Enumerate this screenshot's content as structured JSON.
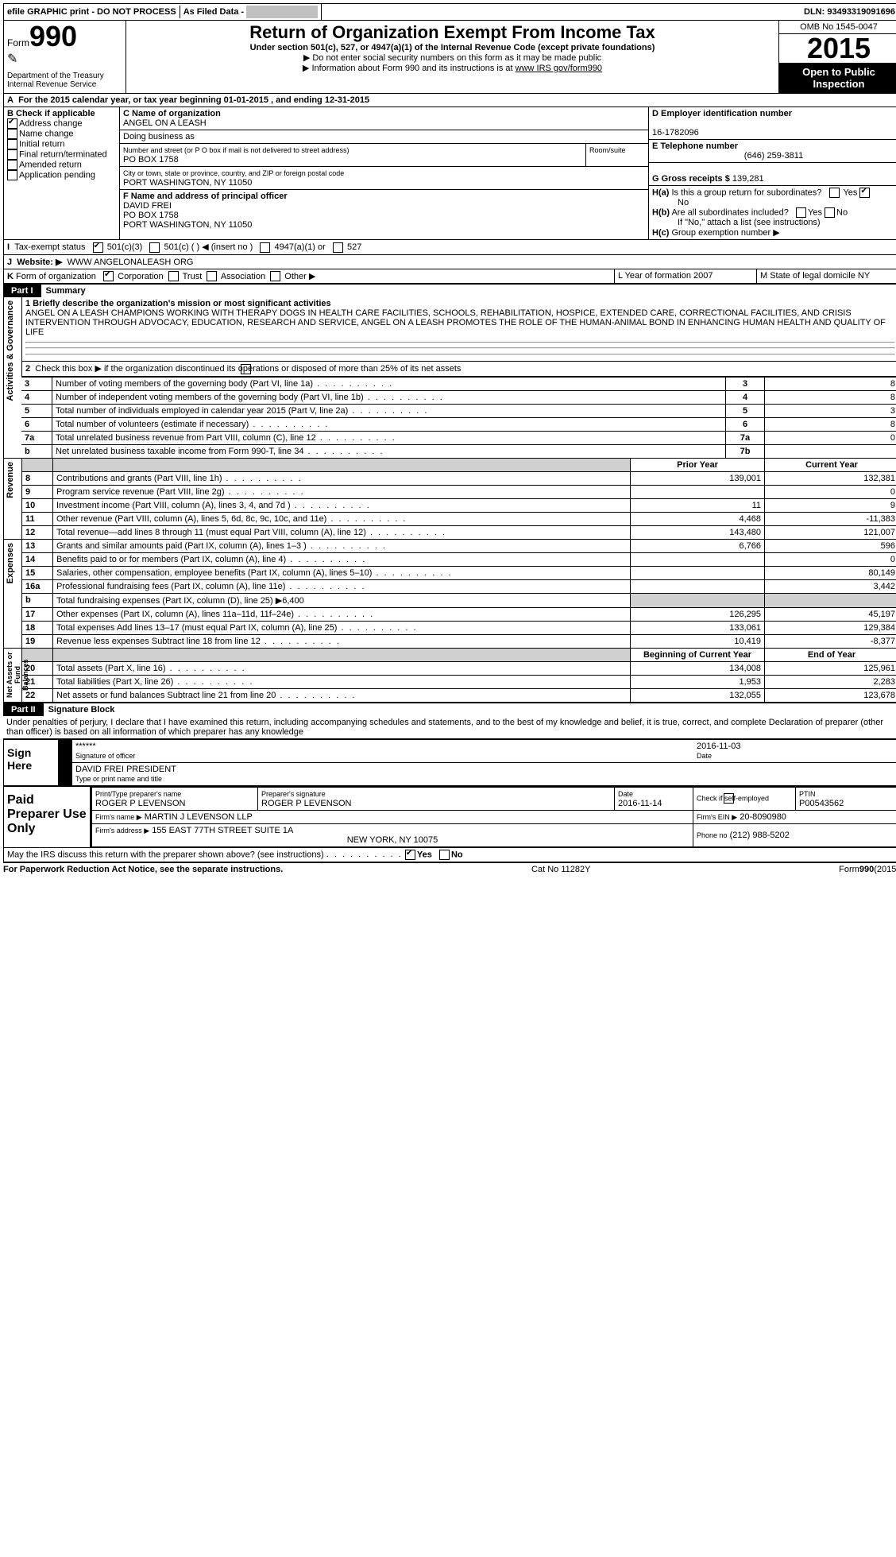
{
  "top": {
    "efile": "efile GRAPHIC print - DO NOT PROCESS",
    "asfiled": "As Filed Data -",
    "dln_label": "DLN:",
    "dln": "93493319091696"
  },
  "header": {
    "form_label": "Form",
    "form_no": "990",
    "dept": "Department of the Treasury\nInternal Revenue Service",
    "title": "Return of Organization Exempt From Income Tax",
    "sub1": "Under section 501(c), 527, or 4947(a)(1) of the Internal Revenue Code (except private foundations)",
    "sub2": "▶ Do not enter social security numbers on this form as it may be made public",
    "sub3": "▶ Information about Form 990 and its instructions is at ",
    "sub3_link": "www IRS gov/form990",
    "omb": "OMB No 1545-0047",
    "year": "2015",
    "open": "Open to Public Inspection"
  },
  "A": {
    "text": "For the 2015 calendar year, or tax year beginning 01-01-2015    , and ending 12-31-2015"
  },
  "B": {
    "label": "Check if applicable",
    "items": [
      "Address change",
      "Name change",
      "Initial return",
      "Final return/terminated",
      "Amended return",
      "Application pending"
    ],
    "checked": [
      true,
      false,
      false,
      false,
      false,
      false
    ]
  },
  "C": {
    "name_label": "C Name of organization",
    "name": "ANGEL ON A LEASH",
    "dba_label": "Doing business as",
    "addr_label": "Number and street (or P O  box if mail is not delivered to street address)",
    "room_label": "Room/suite",
    "addr": "PO BOX 1758",
    "city_label": "City or town, state or province, country, and ZIP or foreign postal code",
    "city": "PORT WASHINGTON, NY  11050"
  },
  "D": {
    "label": "D Employer identification number",
    "val": "16-1782096"
  },
  "E": {
    "label": "E Telephone number",
    "val": "(646) 259-3811"
  },
  "F": {
    "label": "F  Name and address of principal officer",
    "name": "DAVID FREI",
    "addr1": "PO BOX 1758",
    "addr2": "PORT WASHINGTON, NY  11050"
  },
  "G": {
    "label": "G Gross receipts $",
    "val": "139,281"
  },
  "H": {
    "a": "Is this a group return for subordinates?",
    "a_yes": "Yes",
    "a_no": "No",
    "b": "Are all subordinates included?",
    "b_note": "If \"No,\" attach a list  (see instructions)",
    "c": "Group exemption number ▶"
  },
  "I": {
    "label": "Tax-exempt status",
    "opts": [
      "501(c)(3)",
      "501(c) (  ) ◀ (insert no )",
      "4947(a)(1) or",
      "527"
    ]
  },
  "J": {
    "label": "Website: ▶",
    "val": "WWW ANGELONALEASH ORG"
  },
  "K": {
    "label": "Form of organization",
    "opts": [
      "Corporation",
      "Trust",
      "Association",
      "Other ▶"
    ]
  },
  "L": {
    "label": "L Year of formation  2007"
  },
  "M": {
    "label": "M State of legal domicile  NY"
  },
  "part1": {
    "tag": "Part I",
    "title": "Summary",
    "l1_label": "1 Briefly describe the organization's mission or most significant activities",
    "l1": "ANGEL ON A LEASH CHAMPIONS WORKING WITH THERAPY DOGS IN HEALTH CARE FACILITIES, SCHOOLS, REHABILITATION, HOSPICE, EXTENDED CARE, CORRECTIONAL FACILITIES, AND CRISIS INTERVENTION THROUGH ADVOCACY, EDUCATION, RESEARCH AND SERVICE, ANGEL ON A LEASH PROMOTES THE ROLE OF THE HUMAN-ANIMAL BOND IN ENHANCING HUMAN HEALTH AND QUALITY OF LIFE",
    "l2": "Check this box ▶      if the organization discontinued its operations or disposed of more than 25% of its net assets",
    "rows_a": [
      {
        "n": "3",
        "t": "Number of voting members of the governing body (Part VI, line 1a)",
        "k": "3",
        "v": "8"
      },
      {
        "n": "4",
        "t": "Number of independent voting members of the governing body (Part VI, line 1b)",
        "k": "4",
        "v": "8"
      },
      {
        "n": "5",
        "t": "Total number of individuals employed in calendar year 2015 (Part V, line 2a)",
        "k": "5",
        "v": "3"
      },
      {
        "n": "6",
        "t": "Total number of volunteers (estimate if necessary)",
        "k": "6",
        "v": "8"
      },
      {
        "n": "7a",
        "t": "Total unrelated business revenue from Part VIII, column (C), line 12",
        "k": "7a",
        "v": "0"
      },
      {
        "n": "b",
        "t": "Net unrelated business taxable income from Form 990-T, line 34",
        "k": "7b",
        "v": ""
      }
    ],
    "hdr_prior": "Prior Year",
    "hdr_curr": "Current Year",
    "rev": [
      {
        "n": "8",
        "t": "Contributions and grants (Part VIII, line 1h)",
        "p": "139,001",
        "c": "132,381"
      },
      {
        "n": "9",
        "t": "Program service revenue (Part VIII, line 2g)",
        "p": "",
        "c": "0"
      },
      {
        "n": "10",
        "t": "Investment income (Part VIII, column (A), lines 3, 4, and 7d )",
        "p": "11",
        "c": "9"
      },
      {
        "n": "11",
        "t": "Other revenue (Part VIII, column (A), lines 5, 6d, 8c, 9c, 10c, and 11e)",
        "p": "4,468",
        "c": "-11,383"
      },
      {
        "n": "12",
        "t": "Total revenue—add lines 8 through 11 (must equal Part VIII, column (A), line 12)",
        "p": "143,480",
        "c": "121,007"
      }
    ],
    "exp": [
      {
        "n": "13",
        "t": "Grants and similar amounts paid (Part IX, column (A), lines 1–3 )",
        "p": "6,766",
        "c": "596"
      },
      {
        "n": "14",
        "t": "Benefits paid to or for members (Part IX, column (A), line 4)",
        "p": "",
        "c": "0"
      },
      {
        "n": "15",
        "t": "Salaries, other compensation, employee benefits (Part IX, column (A), lines 5–10)",
        "p": "",
        "c": "80,149"
      },
      {
        "n": "16a",
        "t": "Professional fundraising fees (Part IX, column (A), line 11e)",
        "p": "",
        "c": "3,442"
      },
      {
        "n": "b",
        "t": "Total fundraising expenses (Part IX, column (D), line 25) ▶6,400",
        "p": null,
        "c": null
      },
      {
        "n": "17",
        "t": "Other expenses (Part IX, column (A), lines 11a–11d, 11f–24e)",
        "p": "126,295",
        "c": "45,197"
      },
      {
        "n": "18",
        "t": "Total expenses  Add lines 13–17 (must equal Part IX, column (A), line 25)",
        "p": "133,061",
        "c": "129,384"
      },
      {
        "n": "19",
        "t": "Revenue less expenses  Subtract line 18 from line 12",
        "p": "10,419",
        "c": "-8,377"
      }
    ],
    "hdr_beg": "Beginning of Current Year",
    "hdr_end": "End of Year",
    "net": [
      {
        "n": "20",
        "t": "Total assets (Part X, line 16)",
        "p": "134,008",
        "c": "125,961"
      },
      {
        "n": "21",
        "t": "Total liabilities (Part X, line 26)",
        "p": "1,953",
        "c": "2,283"
      },
      {
        "n": "22",
        "t": "Net assets or fund balances  Subtract line 21 from line 20",
        "p": "132,055",
        "c": "123,678"
      }
    ],
    "side_ag": "Activities & Governance",
    "side_rev": "Revenue",
    "side_exp": "Expenses",
    "side_net": "Net Assets or Fund Balances"
  },
  "part2": {
    "tag": "Part II",
    "title": "Signature Block",
    "decl": "Under penalties of perjury, I declare that I have examined this return, including accompanying schedules and statements, and to the best of my knowledge and belief, it is true, correct, and complete  Declaration of preparer (other than officer) is based on all information of which preparer has any knowledge",
    "sign": "Sign Here",
    "sig_stars": "******",
    "sig_of": "Signature of officer",
    "sig_date": "2016-11-03",
    "date_lbl": "Date",
    "name_title": "DAVID FREI PRESIDENT",
    "name_lbl": "Type or print name and title",
    "paid": "Paid Preparer Use Only",
    "prep_name_lbl": "Print/Type preparer's name",
    "prep_name": "ROGER P LEVENSON",
    "prep_sig_lbl": "Preparer's signature",
    "prep_sig": "ROGER P LEVENSON",
    "prep_date_lbl": "Date",
    "prep_date": "2016-11-14",
    "check_lbl": "Check       if self-employed",
    "ptin_lbl": "PTIN",
    "ptin": "P00543562",
    "firm_name_lbl": "Firm's name      ▶",
    "firm_name": "MARTIN J LEVENSON LLP",
    "firm_ein_lbl": "Firm's EIN ▶",
    "firm_ein": "20-8090980",
    "firm_addr_lbl": "Firm's address ▶",
    "firm_addr1": "155 EAST 77TH STREET SUITE 1A",
    "firm_addr2": "NEW YORK, NY  10075",
    "phone_lbl": "Phone no",
    "phone": "(212) 988-5202",
    "discuss": "May the IRS discuss this return with the preparer shown above? (see instructions)",
    "yes": "Yes",
    "no": "No"
  },
  "footer": {
    "left": "For Paperwork Reduction Act Notice, see the separate instructions.",
    "mid": "Cat No 11282Y",
    "right": "Form990(2015)"
  }
}
